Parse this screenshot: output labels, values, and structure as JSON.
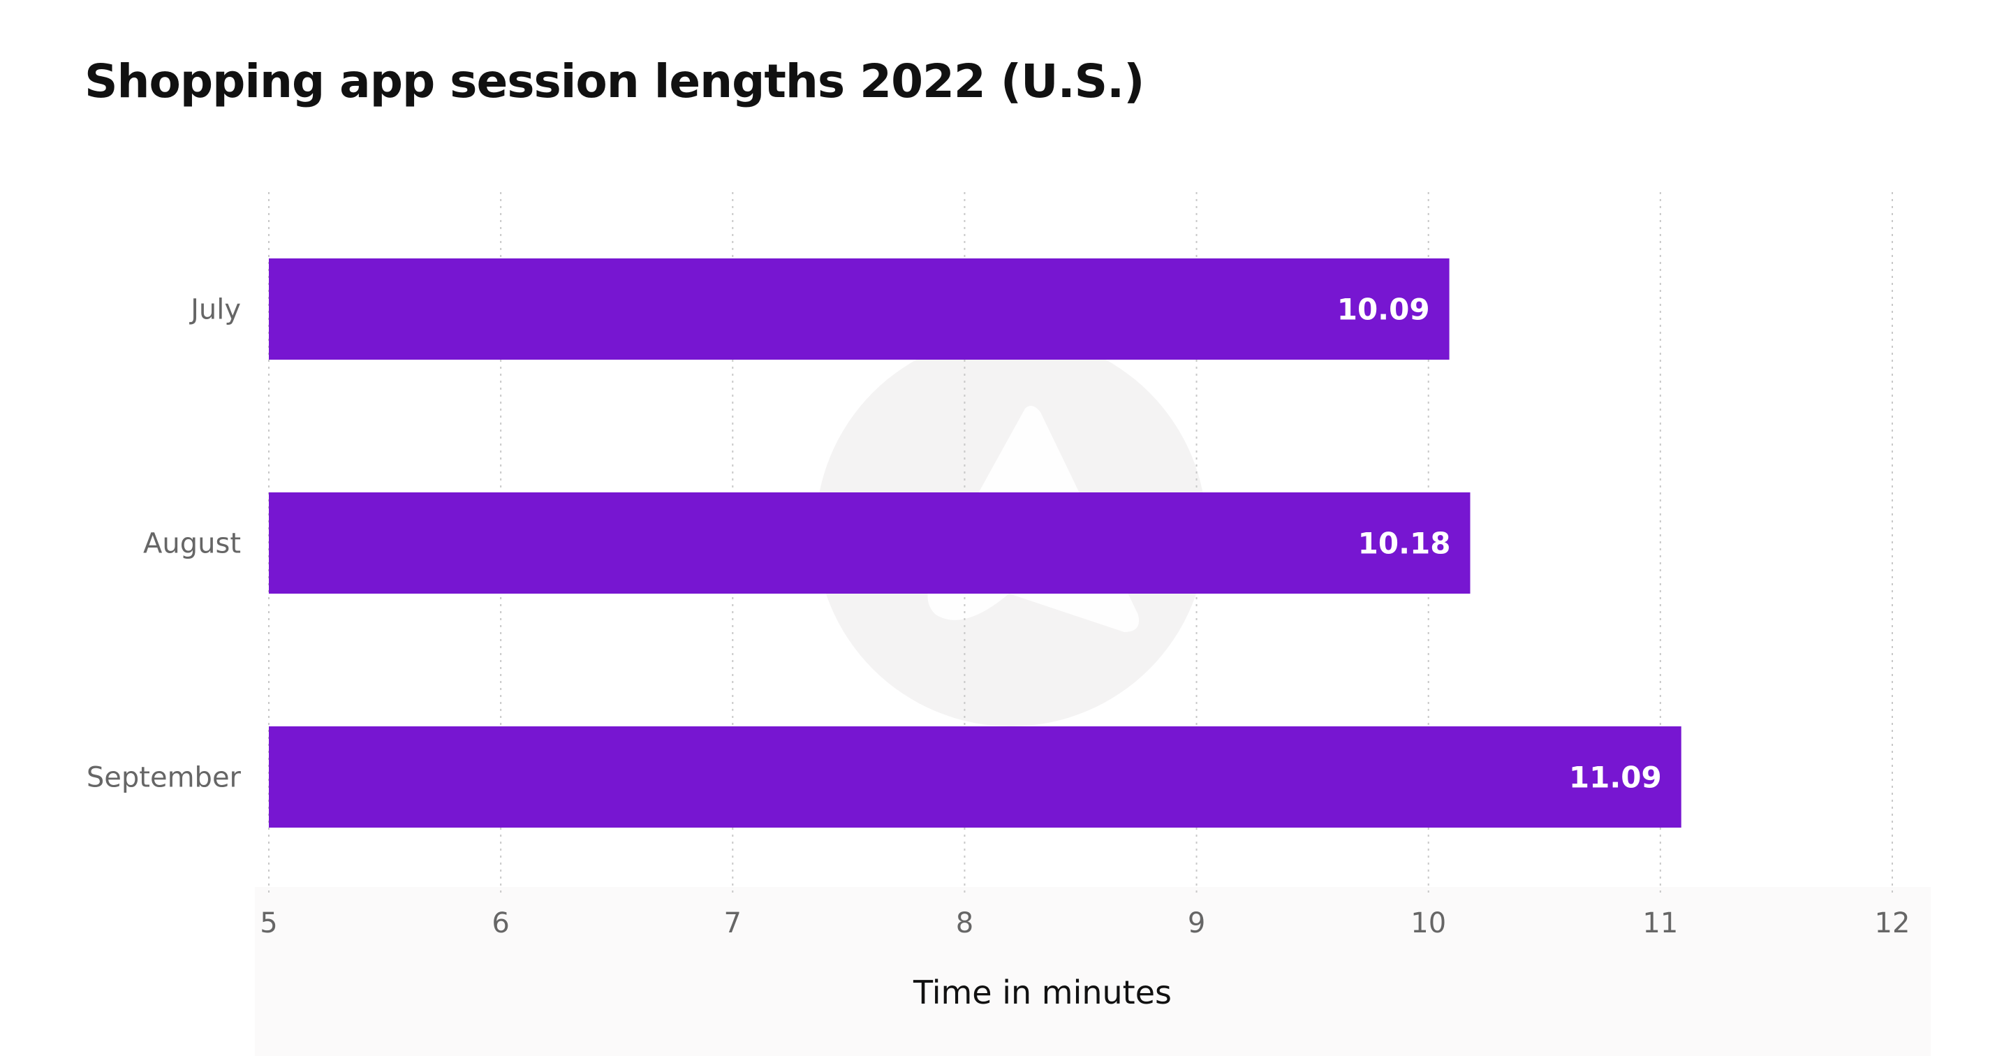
{
  "chart_data": {
    "type": "bar",
    "orientation": "horizontal",
    "title": "Shopping app session lengths 2022 (U.S.)",
    "categories": [
      "July",
      "August",
      "September"
    ],
    "values": [
      10.09,
      10.18,
      11.09
    ],
    "data_labels": [
      "10.09",
      "10.18",
      "11.09"
    ],
    "xlabel": "Time in minutes",
    "ylabel": "",
    "xlim": [
      5,
      12
    ],
    "xticks": [
      5,
      6,
      7,
      8,
      9,
      10,
      11,
      12
    ],
    "xtick_labels": [
      "5",
      "6",
      "7",
      "8",
      "9",
      "10",
      "11",
      "12"
    ],
    "grid": "vertical-dotted",
    "legend": "none",
    "bar_color": "#7716d1"
  }
}
